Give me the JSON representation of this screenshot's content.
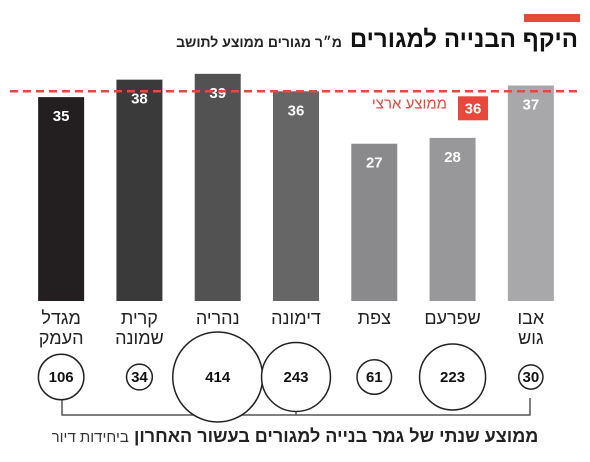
{
  "chart_data": {
    "type": "bar",
    "title": "היקף הבנייה למגורים",
    "subtitle": "מ״ר מגורים ממוצע לתושב",
    "categories": [
      "מגדל העמק",
      "קרית שמונה",
      "נהריה",
      "דימונה",
      "צפת",
      "שפרעם",
      "אבו גוש"
    ],
    "values": [
      35,
      38,
      39,
      36,
      27,
      28,
      37
    ],
    "colors": [
      "#231f20",
      "#3a3a3b",
      "#525253",
      "#666667",
      "#8a8a8c",
      "#98989a",
      "#a8a8aa"
    ],
    "ylim": [
      0,
      40
    ],
    "reference": {
      "label": "ממוצע ארצי",
      "value": 36,
      "color": "#e8473b"
    },
    "bubbles": {
      "values": [
        106,
        34,
        414,
        243,
        61,
        223,
        30
      ],
      "caption": "ממוצע שנתי של גמר בנייה למגורים בעשור האחרון",
      "unit": "ביחידות דיור"
    }
  }
}
